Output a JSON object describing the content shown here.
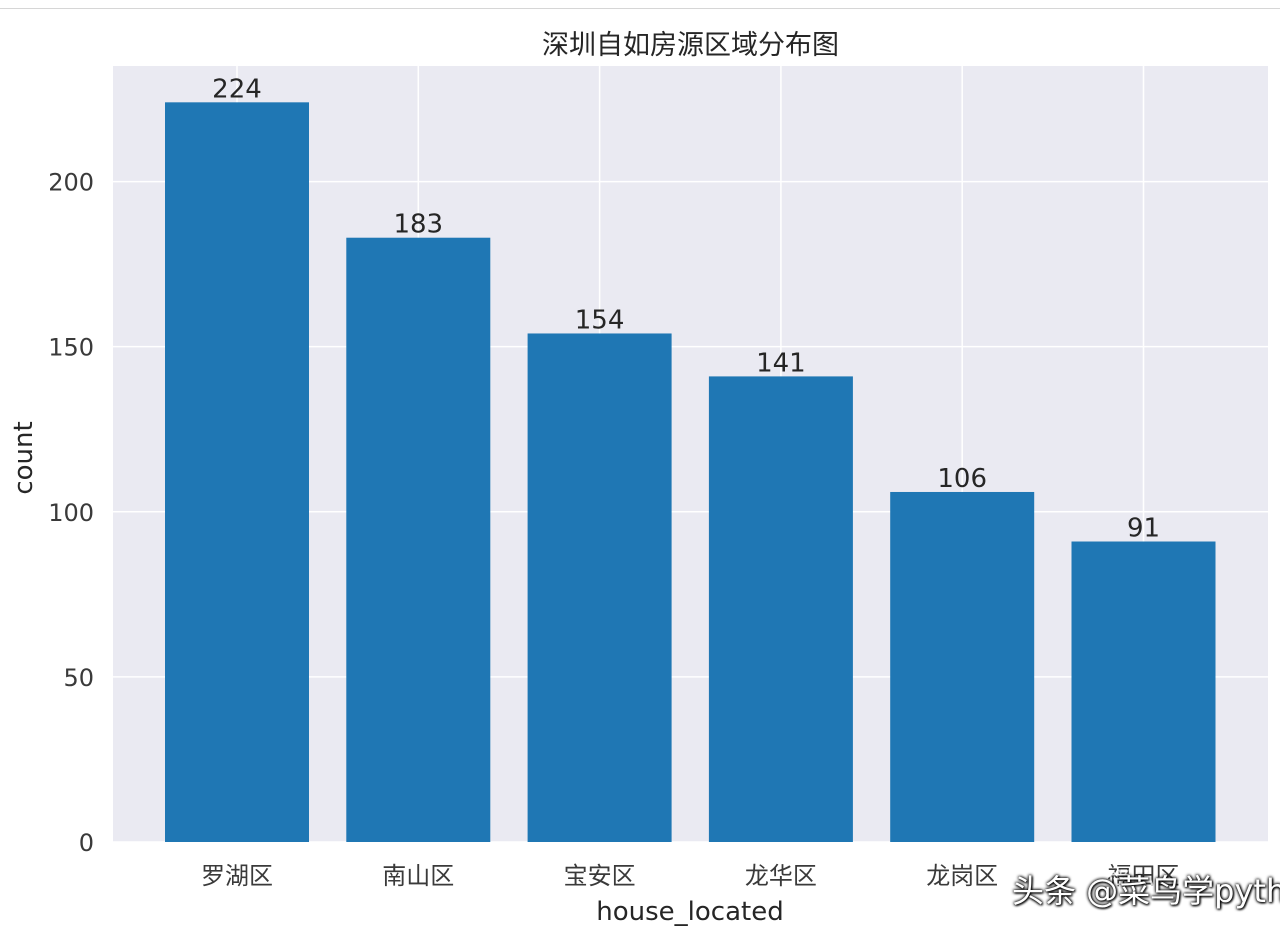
{
  "chart_data": {
    "type": "bar",
    "title": "深圳自如房源区域分布图",
    "xlabel": "house_located",
    "ylabel": "count",
    "categories": [
      "罗湖区",
      "南山区",
      "宝安区",
      "龙华区",
      "龙岗区",
      "福田区"
    ],
    "values": [
      224,
      183,
      154,
      141,
      106,
      91
    ],
    "ylim": [
      0,
      235
    ],
    "yticks": [
      0,
      50,
      100,
      150,
      200
    ],
    "grid": true,
    "style": "seaborn-darkgrid",
    "bar_color": "#1f77b4",
    "background_color": "#eaeaf2"
  },
  "watermark": {
    "text": "头条 @菜鸟学python",
    "faint_text": "菜鸟学python"
  }
}
